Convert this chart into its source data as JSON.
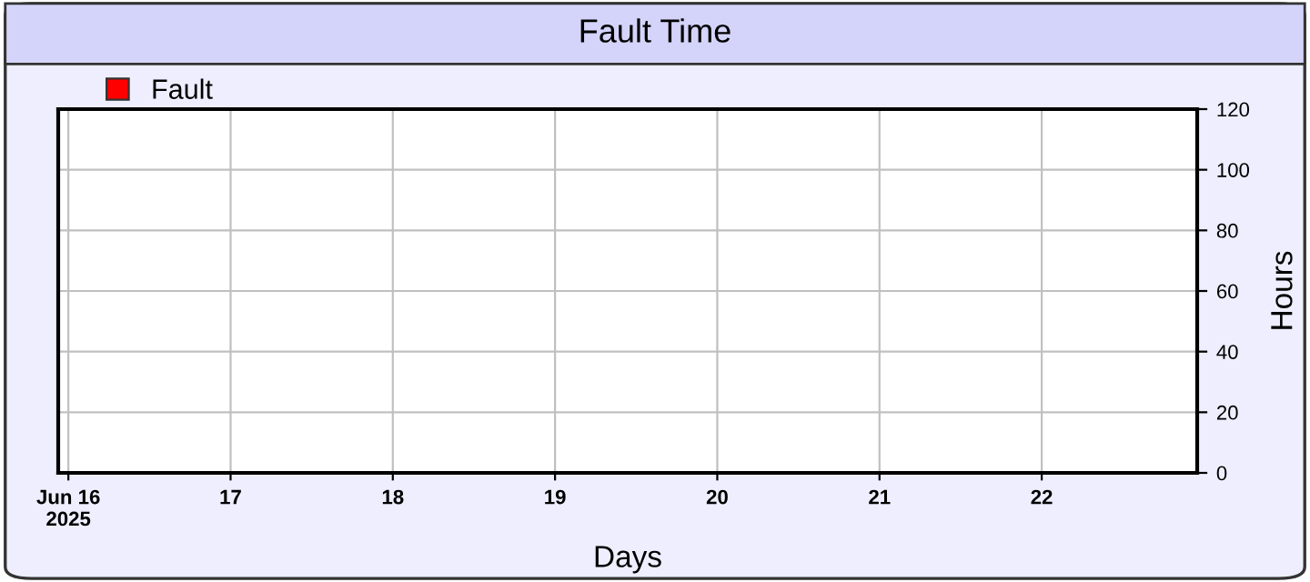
{
  "chart_data": {
    "type": "bar",
    "title": "Fault Time",
    "xlabel": "Days",
    "ylabel": "Hours",
    "x": [
      "2025-06-16",
      "2025-06-17",
      "2025-06-18",
      "2025-06-19",
      "2025-06-20",
      "2025-06-21",
      "2025-06-22"
    ],
    "series": [
      {
        "name": "Fault",
        "color": "#ff0000",
        "values": [
          0,
          0,
          0,
          0,
          0,
          0,
          0
        ]
      }
    ],
    "xlim": [
      "2025-06-15T22:30",
      "2025-06-22T23:00"
    ],
    "xticks": [
      {
        "value": "2025-06-16",
        "label": "Jun 16\n2025"
      },
      {
        "value": "2025-06-17",
        "label": "17"
      },
      {
        "value": "2025-06-18",
        "label": "18"
      },
      {
        "value": "2025-06-19",
        "label": "19"
      },
      {
        "value": "2025-06-20",
        "label": "20"
      },
      {
        "value": "2025-06-21",
        "label": "21"
      },
      {
        "value": "2025-06-22",
        "label": "22"
      }
    ],
    "ylim": [
      0,
      120
    ],
    "yticks": [
      0,
      20,
      40,
      60,
      80,
      100,
      120
    ],
    "grid": true,
    "legend": "top left"
  }
}
